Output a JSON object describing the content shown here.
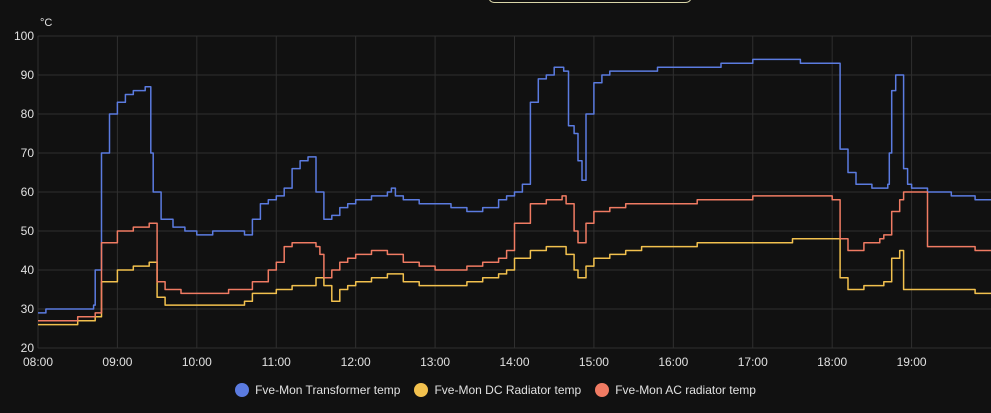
{
  "chart_data": {
    "type": "line",
    "unit": "°C",
    "ylim": [
      20,
      100
    ],
    "yticks": [
      "100",
      "90",
      "80",
      "70",
      "60",
      "50",
      "40",
      "30",
      "20"
    ],
    "xlim": [
      8.0,
      20.0
    ],
    "xticks": [
      "08:00",
      "09:00",
      "10:00",
      "11:00",
      "12:00",
      "13:00",
      "14:00",
      "15:00",
      "16:00",
      "17:00",
      "18:00",
      "19:00"
    ],
    "grid": true,
    "legend_position": "bottom",
    "series": [
      {
        "name": "Fve-Mon Transformer temp",
        "color": "#5b7be0",
        "x": [
          8.0,
          8.05,
          8.1,
          8.5,
          8.6,
          8.7,
          8.72,
          8.8,
          8.9,
          9.0,
          9.1,
          9.2,
          9.3,
          9.35,
          9.4,
          9.42,
          9.45,
          9.55,
          9.7,
          9.85,
          10.0,
          10.1,
          10.2,
          10.3,
          10.5,
          10.6,
          10.7,
          10.8,
          10.9,
          11.0,
          11.1,
          11.2,
          11.3,
          11.4,
          11.45,
          11.5,
          11.6,
          11.7,
          11.8,
          11.9,
          12.0,
          12.2,
          12.4,
          12.45,
          12.5,
          12.6,
          12.8,
          13.0,
          13.2,
          13.4,
          13.6,
          13.8,
          13.9,
          14.0,
          14.1,
          14.2,
          14.3,
          14.4,
          14.5,
          14.6,
          14.62,
          14.68,
          14.75,
          14.8,
          14.85,
          14.9,
          15.0,
          15.1,
          15.2,
          15.4,
          15.6,
          15.8,
          16.0,
          16.3,
          16.6,
          16.8,
          17.0,
          17.3,
          17.6,
          17.8,
          18.05,
          18.1,
          18.2,
          18.3,
          18.5,
          18.6,
          18.7,
          18.72,
          18.75,
          18.8,
          18.85,
          18.9,
          18.95,
          19.0,
          19.2,
          19.5,
          19.8,
          20.0
        ],
        "y": [
          29,
          29,
          30,
          30,
          30,
          31,
          40,
          70,
          80,
          83,
          85,
          86,
          86,
          87,
          87,
          70,
          60,
          53,
          51,
          50,
          49,
          49,
          50,
          50,
          50,
          49,
          53,
          57,
          58,
          59,
          61,
          66,
          68,
          69,
          69,
          60,
          53,
          54,
          56,
          57,
          58,
          59,
          60,
          61,
          59,
          58,
          57,
          57,
          56,
          55,
          56,
          58,
          59,
          60,
          62,
          83,
          89,
          90,
          92,
          92,
          91,
          77,
          75,
          68,
          63,
          80,
          88,
          90,
          91,
          91,
          91,
          92,
          92,
          92,
          93,
          93,
          94,
          94,
          93,
          93,
          93,
          71,
          65,
          62,
          61,
          61,
          62,
          70,
          86,
          90,
          90,
          66,
          62,
          61,
          60,
          59,
          58,
          58
        ]
      },
      {
        "name": "Fve-Mon DC Radiator temp",
        "color": "#f2c14e",
        "x": [
          8.0,
          8.2,
          8.5,
          8.6,
          8.7,
          8.72,
          8.8,
          9.0,
          9.2,
          9.3,
          9.4,
          9.5,
          9.6,
          9.8,
          10.0,
          10.2,
          10.4,
          10.6,
          10.7,
          10.9,
          11.0,
          11.2,
          11.5,
          11.55,
          11.6,
          11.7,
          11.8,
          11.9,
          12.0,
          12.2,
          12.4,
          12.6,
          12.8,
          13.0,
          13.2,
          13.4,
          13.6,
          13.8,
          13.9,
          14.0,
          14.2,
          14.4,
          14.6,
          14.65,
          14.75,
          14.8,
          14.9,
          15.0,
          15.2,
          15.4,
          15.6,
          16.0,
          16.3,
          16.6,
          17.0,
          17.5,
          18.0,
          18.05,
          18.1,
          18.2,
          18.4,
          18.6,
          18.65,
          18.75,
          18.85,
          18.9,
          19.2,
          19.5,
          19.8,
          20.0
        ],
        "y": [
          26,
          26,
          27,
          27,
          27,
          28,
          37,
          40,
          41,
          41,
          42,
          33,
          31,
          31,
          31,
          31,
          31,
          32,
          34,
          34,
          35,
          36,
          38,
          38,
          36,
          32,
          35,
          36,
          37,
          38,
          39,
          37,
          36,
          36,
          36,
          37,
          38,
          39,
          40,
          43,
          45,
          46,
          46,
          44,
          40,
          38,
          41,
          43,
          44,
          45,
          46,
          46,
          47,
          47,
          47,
          48,
          48,
          48,
          38,
          35,
          36,
          36,
          37,
          43,
          45,
          35,
          35,
          35,
          34,
          34
        ]
      },
      {
        "name": "Fve-Mon AC radiator temp",
        "color": "#f07b63",
        "x": [
          8.0,
          8.2,
          8.5,
          8.6,
          8.7,
          8.72,
          8.8,
          9.0,
          9.2,
          9.3,
          9.4,
          9.5,
          9.6,
          9.8,
          10.0,
          10.2,
          10.4,
          10.6,
          10.7,
          10.9,
          11.0,
          11.1,
          11.2,
          11.5,
          11.55,
          11.6,
          11.7,
          11.8,
          11.9,
          12.0,
          12.2,
          12.4,
          12.6,
          12.8,
          13.0,
          13.2,
          13.4,
          13.6,
          13.8,
          13.9,
          14.0,
          14.2,
          14.4,
          14.6,
          14.65,
          14.75,
          14.8,
          14.9,
          15.0,
          15.2,
          15.4,
          15.6,
          16.0,
          16.3,
          16.6,
          17.0,
          17.5,
          18.0,
          18.05,
          18.1,
          18.2,
          18.4,
          18.6,
          18.65,
          18.75,
          18.85,
          18.9,
          19.2,
          19.5,
          19.8,
          20.0
        ],
        "y": [
          27,
          27,
          28,
          28,
          28,
          29,
          47,
          50,
          51,
          51,
          52,
          37,
          35,
          34,
          34,
          34,
          35,
          35,
          37,
          40,
          42,
          46,
          47,
          46,
          44,
          38,
          40,
          42,
          43,
          44,
          45,
          44,
          42,
          41,
          40,
          40,
          41,
          42,
          43,
          45,
          52,
          57,
          58,
          59,
          57,
          50,
          47,
          52,
          55,
          56,
          57,
          57,
          57,
          58,
          58,
          59,
          59,
          58,
          58,
          48,
          45,
          47,
          48,
          49,
          55,
          58,
          60,
          46,
          46,
          45,
          45
        ]
      }
    ]
  }
}
